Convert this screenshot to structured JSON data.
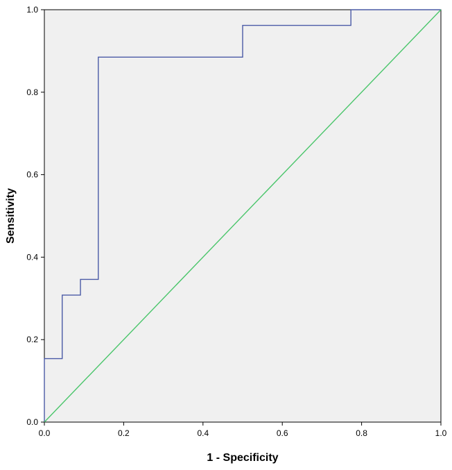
{
  "chart_data": {
    "type": "line",
    "title": "",
    "xlabel": "1 - Specificity",
    "ylabel": "Sensitivity",
    "xlim": [
      0.0,
      1.0
    ],
    "ylim": [
      0.0,
      1.0
    ],
    "x_ticks": [
      "0.0",
      "0.2",
      "0.4",
      "0.6",
      "0.8",
      "1.0"
    ],
    "y_ticks": [
      "0.0",
      "0.2",
      "0.4",
      "0.6",
      "0.8",
      "1.0"
    ],
    "grid": false,
    "legend": "none",
    "series": [
      {
        "step": true,
        "color": "#4a5aa6",
        "x": [
          0.0,
          0.0,
          0.045,
          0.045,
          0.091,
          0.091,
          0.136,
          0.136,
          0.5,
          0.5,
          0.773,
          0.773,
          1.0
        ],
        "y": [
          0.0,
          0.154,
          0.154,
          0.308,
          0.308,
          0.346,
          0.346,
          0.885,
          0.885,
          0.962,
          0.962,
          1.0,
          1.0
        ]
      },
      {
        "color": "#49c56a",
        "x": [
          0.0,
          1.0
        ],
        "y": [
          0.0,
          1.0
        ]
      }
    ],
    "colors": {
      "plot_background": "#f0f0f0",
      "axis": "#000000"
    }
  }
}
